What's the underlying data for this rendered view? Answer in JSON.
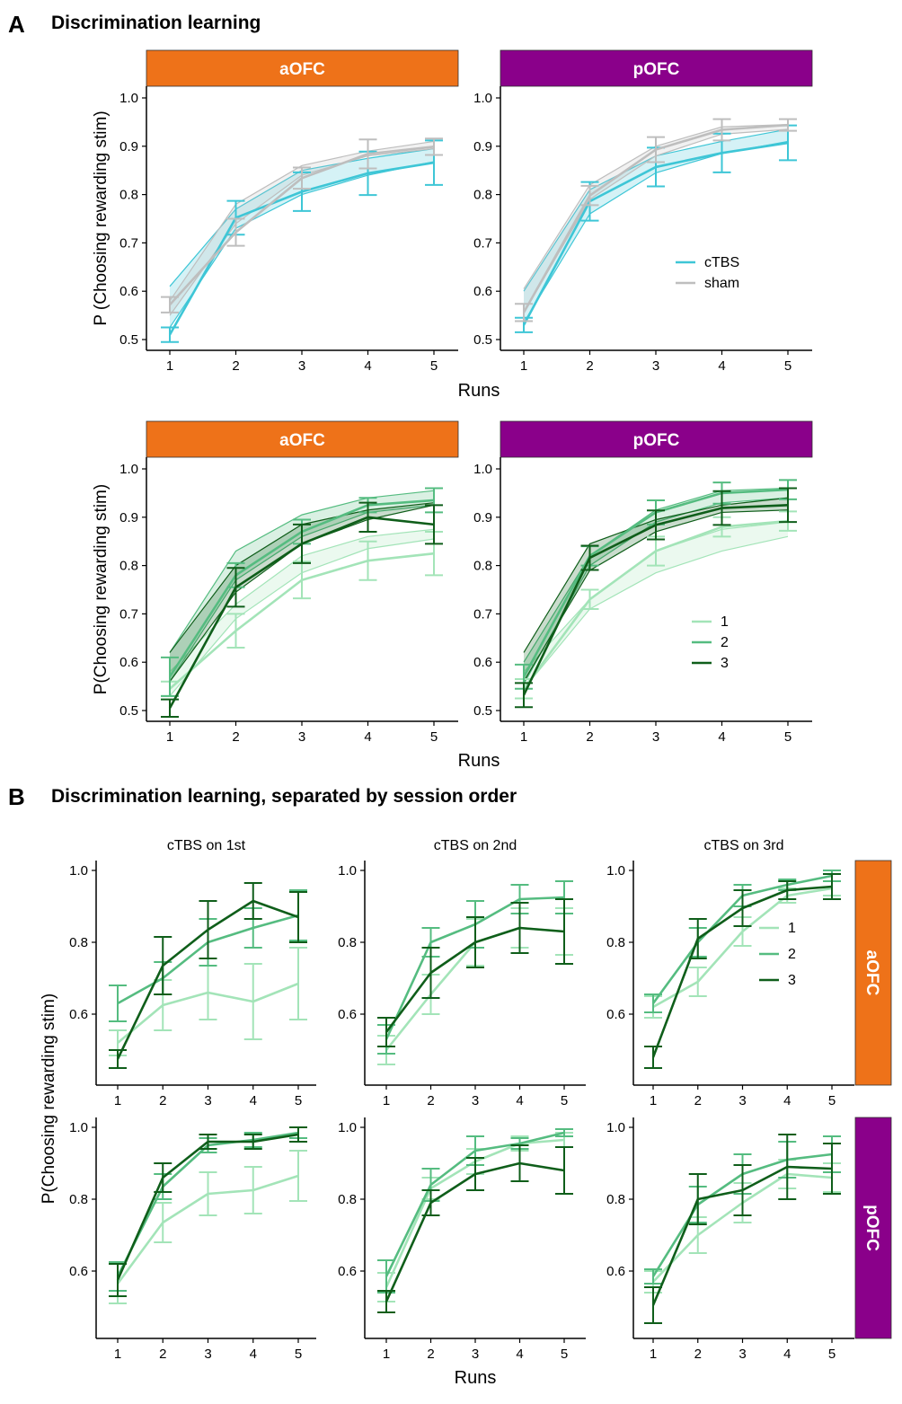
{
  "panel_a": {
    "letter": "A",
    "title": "Discrimination learning"
  },
  "panel_b": {
    "letter": "B",
    "title": "Discrimination learning, separated by session order"
  },
  "colors": {
    "aOFC": "#EE7219",
    "pOFC": "#8A008A",
    "cTBS": "#3EC6D6",
    "sham": "#BEBEBE",
    "order1": "#A3E4B8",
    "order2": "#55BC80",
    "order3": "#0F5E1A"
  },
  "chart_data": [
    {
      "id": "A1",
      "type": "line",
      "facet": "aOFC",
      "ylabel": "P (Choosing rewarding stim)",
      "xlabel": "",
      "x": [
        1,
        2,
        3,
        4,
        5
      ],
      "ylim": [
        0.5,
        1.0
      ],
      "yticks": [
        0.5,
        0.6,
        0.7,
        0.8,
        0.9,
        1.0
      ],
      "yticklabels": [
        "0.5",
        "0.6",
        "0.7",
        "0.8",
        "0.9",
        "1.0"
      ],
      "series": [
        {
          "name": "cTBS",
          "color": "#3EC6D6",
          "values": [
            0.51,
            0.752,
            0.806,
            0.844,
            0.866
          ],
          "err": [
            0.015,
            0.035,
            0.04,
            0.045,
            0.046
          ],
          "band": {
            "upper": [
              0.61,
              0.77,
              0.85,
              0.875,
              0.895
            ],
            "lower": [
              0.525,
              0.73,
              0.8,
              0.84,
              0.868
            ]
          }
        },
        {
          "name": "sham",
          "color": "#BEBEBE",
          "values": [
            0.572,
            0.722,
            0.834,
            0.884,
            0.899
          ],
          "err": [
            0.016,
            0.028,
            0.022,
            0.03,
            0.017
          ],
          "band": {
            "upper": [
              0.58,
              0.78,
              0.86,
              0.89,
              0.91
            ],
            "lower": [
              0.55,
              0.74,
              0.84,
              0.88,
              0.895
            ]
          }
        }
      ]
    },
    {
      "id": "A2",
      "type": "line",
      "facet": "pOFC",
      "ylabel": "",
      "xlabel": "Runs",
      "x": [
        1,
        2,
        3,
        4,
        5
      ],
      "ylim": [
        0.5,
        1.0
      ],
      "yticks": [
        0.5,
        0.6,
        0.7,
        0.8,
        0.9,
        1.0
      ],
      "yticklabels": [
        "0.5",
        "0.6",
        "0.7",
        "0.8",
        "0.9",
        "1.0"
      ],
      "legend": {
        "position": "inside-bottom-right"
      },
      "series": [
        {
          "name": "cTBS",
          "color": "#3EC6D6",
          "values": [
            0.53,
            0.786,
            0.857,
            0.886,
            0.907
          ],
          "err": [
            0.015,
            0.04,
            0.04,
            0.04,
            0.036
          ],
          "band": {
            "upper": [
              0.6,
              0.81,
              0.88,
              0.91,
              0.935
            ],
            "lower": [
              0.535,
              0.76,
              0.845,
              0.885,
              0.91
            ]
          }
        },
        {
          "name": "sham",
          "color": "#BEBEBE",
          "values": [
            0.556,
            0.798,
            0.893,
            0.934,
            0.944
          ],
          "err": [
            0.018,
            0.02,
            0.026,
            0.022,
            0.012
          ],
          "band": {
            "upper": [
              0.605,
              0.82,
              0.9,
              0.94,
              0.945
            ],
            "lower": [
              0.555,
              0.79,
              0.88,
              0.925,
              0.935
            ]
          }
        }
      ]
    },
    {
      "id": "A3",
      "type": "line",
      "facet": "aOFC",
      "ylabel": "P(Choosing rewarding stim)",
      "xlabel": "",
      "x": [
        1,
        2,
        3,
        4,
        5
      ],
      "ylim": [
        0.5,
        1.0
      ],
      "yticks": [
        0.5,
        0.6,
        0.7,
        0.8,
        0.9,
        1.0
      ],
      "yticklabels": [
        "0.5",
        "0.6",
        "0.7",
        "0.8",
        "0.9",
        "1.0"
      ],
      "series": [
        {
          "name": "1",
          "color": "#A3E4B8",
          "values": [
            0.545,
            0.665,
            0.77,
            0.81,
            0.825
          ],
          "err": [
            0.015,
            0.035,
            0.038,
            0.04,
            0.045
          ],
          "band": {
            "upper": [
              0.58,
              0.72,
              0.82,
              0.86,
              0.875
            ],
            "lower": [
              0.53,
              0.69,
              0.785,
              0.835,
              0.855
            ]
          }
        },
        {
          "name": "2",
          "color": "#55BC80",
          "values": [
            0.57,
            0.78,
            0.87,
            0.925,
            0.935
          ],
          "err": [
            0.04,
            0.025,
            0.025,
            0.015,
            0.025
          ],
          "band": {
            "upper": [
              0.62,
              0.83,
              0.905,
              0.94,
              0.955
            ],
            "lower": [
              0.56,
              0.77,
              0.86,
              0.91,
              0.925
            ]
          }
        },
        {
          "name": "3",
          "color": "#0F5E1A",
          "values": [
            0.505,
            0.755,
            0.845,
            0.9,
            0.885
          ],
          "err": [
            0.018,
            0.04,
            0.04,
            0.03,
            0.04
          ],
          "band": {
            "upper": [
              0.62,
              0.8,
              0.885,
              0.915,
              0.93
            ],
            "lower": [
              0.56,
              0.745,
              0.845,
              0.895,
              0.925
            ]
          }
        }
      ]
    },
    {
      "id": "A4",
      "type": "line",
      "facet": "pOFC",
      "ylabel": "",
      "xlabel": "Runs",
      "x": [
        1,
        2,
        3,
        4,
        5
      ],
      "ylim": [
        0.5,
        1.0
      ],
      "yticks": [
        0.5,
        0.6,
        0.7,
        0.8,
        0.9,
        1.0
      ],
      "yticklabels": [
        "0.5",
        "0.6",
        "0.7",
        "0.8",
        "0.9",
        "1.0"
      ],
      "legend": {
        "position": "inside-bottom-right"
      },
      "series": [
        {
          "name": "1",
          "color": "#A3E4B8",
          "values": [
            0.545,
            0.73,
            0.83,
            0.88,
            0.892
          ],
          "err": [
            0.02,
            0.02,
            0.03,
            0.02,
            0.02
          ],
          "band": {
            "upper": [
              0.58,
              0.73,
              0.83,
              0.875,
              0.89
            ],
            "lower": [
              0.545,
              0.71,
              0.785,
              0.83,
              0.86
            ]
          }
        },
        {
          "name": "2",
          "color": "#55BC80",
          "values": [
            0.57,
            0.82,
            0.91,
            0.95,
            0.957
          ],
          "err": [
            0.025,
            0.02,
            0.025,
            0.022,
            0.02
          ],
          "band": {
            "upper": [
              0.6,
              0.82,
              0.915,
              0.955,
              0.96
            ],
            "lower": [
              0.555,
              0.8,
              0.89,
              0.93,
              0.94
            ]
          }
        },
        {
          "name": "3",
          "color": "#0F5E1A",
          "values": [
            0.532,
            0.816,
            0.884,
            0.919,
            0.925
          ],
          "err": [
            0.025,
            0.025,
            0.03,
            0.035,
            0.035
          ],
          "band": {
            "upper": [
              0.62,
              0.845,
              0.895,
              0.925,
              0.94
            ],
            "lower": [
              0.56,
              0.79,
              0.87,
              0.91,
              0.915
            ]
          }
        }
      ]
    },
    {
      "id": "B11",
      "type": "line",
      "column": "cTBS on 1st",
      "row": "aOFC",
      "x": [
        1,
        2,
        3,
        4,
        5
      ],
      "ylim": [
        0.44,
        1.0
      ],
      "yticks": [
        0.6,
        0.8,
        1.0
      ],
      "yticklabels": [
        "0.6",
        "0.8",
        "1.0"
      ],
      "series": [
        {
          "name": "1",
          "color": "#A3E4B8",
          "values": [
            0.52,
            0.625,
            0.66,
            0.635,
            0.685
          ],
          "err": [
            0.035,
            0.07,
            0.075,
            0.105,
            0.1
          ]
        },
        {
          "name": "2",
          "color": "#55BC80",
          "values": [
            0.63,
            0.7,
            0.8,
            0.84,
            0.875
          ],
          "err": [
            0.05,
            0.045,
            0.065,
            0.055,
            0.07
          ]
        },
        {
          "name": "3",
          "color": "#0F5E1A",
          "values": [
            0.475,
            0.735,
            0.835,
            0.915,
            0.87
          ],
          "err": [
            0.025,
            0.08,
            0.08,
            0.05,
            0.07
          ]
        }
      ]
    },
    {
      "id": "B12",
      "type": "line",
      "column": "cTBS on 2nd",
      "row": "aOFC",
      "x": [
        1,
        2,
        3,
        4,
        5
      ],
      "ylim": [
        0.44,
        1.0
      ],
      "yticks": [
        0.6,
        0.8,
        1.0
      ],
      "yticklabels": [
        "0.6",
        "0.8",
        "1.0"
      ],
      "series": [
        {
          "name": "1",
          "color": "#A3E4B8",
          "values": [
            0.5,
            0.655,
            0.8,
            0.84,
            0.83
          ],
          "err": [
            0.04,
            0.055,
            0.065,
            0.055,
            0.065
          ]
        },
        {
          "name": "2",
          "color": "#55BC80",
          "values": [
            0.53,
            0.8,
            0.85,
            0.92,
            0.925
          ],
          "err": [
            0.04,
            0.04,
            0.065,
            0.04,
            0.045
          ]
        },
        {
          "name": "3",
          "color": "#0F5E1A",
          "values": [
            0.55,
            0.715,
            0.8,
            0.84,
            0.83
          ],
          "err": [
            0.04,
            0.07,
            0.07,
            0.07,
            0.09
          ]
        }
      ]
    },
    {
      "id": "B13",
      "type": "line",
      "column": "cTBS on 3rd",
      "row": "aOFC",
      "x": [
        1,
        2,
        3,
        4,
        5
      ],
      "ylim": [
        0.44,
        1.0
      ],
      "yticks": [
        0.6,
        0.8,
        1.0
      ],
      "yticklabels": [
        "0.6",
        "0.8",
        "1.0"
      ],
      "legend": {
        "position": "inside-right"
      },
      "series": [
        {
          "name": "1",
          "color": "#A3E4B8",
          "values": [
            0.62,
            0.69,
            0.83,
            0.93,
            0.95
          ],
          "err": [
            0.03,
            0.04,
            0.04,
            0.02,
            0.02
          ]
        },
        {
          "name": "2",
          "color": "#55BC80",
          "values": [
            0.63,
            0.8,
            0.93,
            0.96,
            0.985
          ],
          "err": [
            0.025,
            0.04,
            0.03,
            0.015,
            0.015
          ]
        },
        {
          "name": "3",
          "color": "#0F5E1A",
          "values": [
            0.48,
            0.81,
            0.895,
            0.945,
            0.955
          ],
          "err": [
            0.03,
            0.055,
            0.05,
            0.025,
            0.035
          ]
        }
      ]
    },
    {
      "id": "B21",
      "type": "line",
      "column": "cTBS on 1st",
      "row": "pOFC",
      "x": [
        1,
        2,
        3,
        4,
        5
      ],
      "ylim": [
        0.44,
        1.0
      ],
      "yticks": [
        0.6,
        0.8,
        1.0
      ],
      "yticklabels": [
        "0.6",
        "0.8",
        "1.0"
      ],
      "series": [
        {
          "name": "1",
          "color": "#A3E4B8",
          "values": [
            0.565,
            0.735,
            0.815,
            0.825,
            0.865
          ],
          "err": [
            0.055,
            0.055,
            0.06,
            0.065,
            0.07
          ]
        },
        {
          "name": "2",
          "color": "#55BC80",
          "values": [
            0.585,
            0.835,
            0.95,
            0.965,
            0.985
          ],
          "err": [
            0.04,
            0.035,
            0.02,
            0.02,
            0.015
          ]
        },
        {
          "name": "3",
          "color": "#0F5E1A",
          "values": [
            0.575,
            0.86,
            0.96,
            0.96,
            0.98
          ],
          "err": [
            0.045,
            0.04,
            0.02,
            0.02,
            0.02
          ]
        }
      ]
    },
    {
      "id": "B22",
      "type": "line",
      "column": "cTBS on 2nd",
      "row": "pOFC",
      "x": [
        1,
        2,
        3,
        4,
        5
      ],
      "ylim": [
        0.44,
        1.0
      ],
      "yticks": [
        0.6,
        0.8,
        1.0
      ],
      "yticklabels": [
        "0.6",
        "0.8",
        "1.0"
      ],
      "series": [
        {
          "name": "1",
          "color": "#A3E4B8",
          "values": [
            0.555,
            0.83,
            0.905,
            0.955,
            0.965
          ],
          "err": [
            0.04,
            0.03,
            0.035,
            0.02,
            0.02
          ]
        },
        {
          "name": "2",
          "color": "#55BC80",
          "values": [
            0.585,
            0.84,
            0.935,
            0.955,
            0.985
          ],
          "err": [
            0.045,
            0.045,
            0.04,
            0.015,
            0.01
          ]
        },
        {
          "name": "3",
          "color": "#0F5E1A",
          "values": [
            0.515,
            0.79,
            0.87,
            0.9,
            0.88
          ],
          "err": [
            0.03,
            0.035,
            0.045,
            0.05,
            0.065
          ]
        }
      ]
    },
    {
      "id": "B23",
      "type": "line",
      "column": "cTBS on 3rd",
      "row": "pOFC",
      "x": [
        1,
        2,
        3,
        4,
        5
      ],
      "ylim": [
        0.44,
        1.0
      ],
      "yticks": [
        0.6,
        0.8,
        1.0
      ],
      "yticklabels": [
        "0.6",
        "0.8",
        "1.0"
      ],
      "series": [
        {
          "name": "1",
          "color": "#A3E4B8",
          "values": [
            0.57,
            0.7,
            0.79,
            0.87,
            0.86
          ],
          "err": [
            0.03,
            0.05,
            0.055,
            0.04,
            0.04
          ]
        },
        {
          "name": "2",
          "color": "#55BC80",
          "values": [
            0.585,
            0.785,
            0.87,
            0.91,
            0.925
          ],
          "err": [
            0.02,
            0.05,
            0.055,
            0.05,
            0.05
          ]
        },
        {
          "name": "3",
          "color": "#0F5E1A",
          "values": [
            0.505,
            0.8,
            0.825,
            0.89,
            0.885
          ],
          "err": [
            0.05,
            0.07,
            0.07,
            0.09,
            0.07
          ]
        }
      ]
    }
  ],
  "panel_b_columns": [
    "cTBS on 1st",
    "cTBS on 2nd",
    "cTBS on 3rd"
  ],
  "panel_b_rows": [
    "aOFC",
    "pOFC"
  ],
  "panel_b_ylabel": "P(Choosing rewarding stim)",
  "panel_b_xlabel": "Runs"
}
